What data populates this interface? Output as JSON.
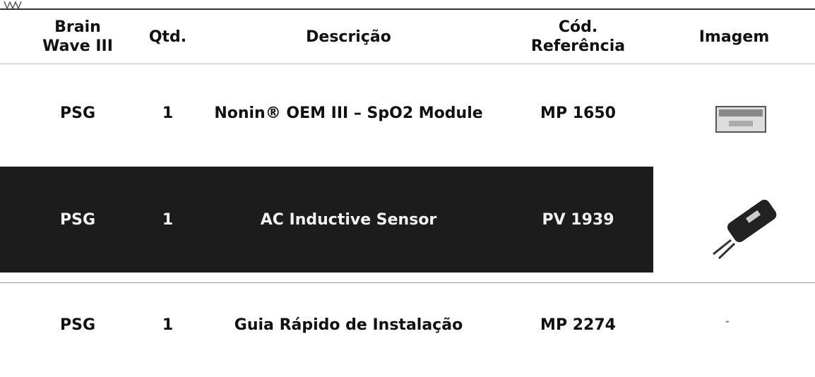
{
  "table": {
    "header": [
      "Brain Wave III",
      "Qtd.",
      "Descrição",
      "Cód. Referência",
      "Imagem"
    ],
    "rows": [
      [
        "PSG",
        "1",
        "Nonin® OEM III – SpO2 Module",
        "MP 1650"
      ],
      [
        "PSG",
        "1",
        "AC Inductive Sensor",
        "PV 1939"
      ],
      [
        "PSG",
        "1",
        "Guia Rápido de Instalação",
        "MP 2274"
      ]
    ]
  }
}
